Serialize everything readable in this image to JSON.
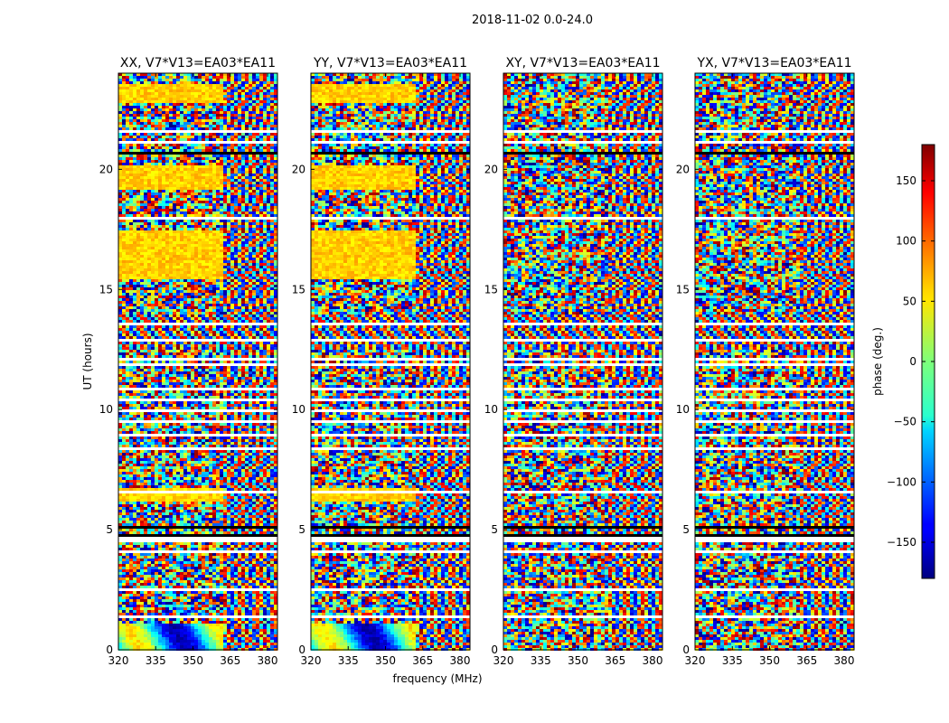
{
  "chart_data": {
    "type": "heatmap",
    "suptitle": "2018-11-02 0.0-24.0",
    "xlabel": "frequency (MHz)",
    "ylabel": "UT (hours)",
    "xlim": [
      320,
      384
    ],
    "ylim": [
      0,
      24
    ],
    "x_ticks": [
      "320",
      "335",
      "350",
      "365",
      "380"
    ],
    "x_tick_values": [
      320,
      335,
      350,
      365,
      380
    ],
    "y_ticks": [
      "0",
      "5",
      "10",
      "15",
      "20"
    ],
    "y_tick_values": [
      0,
      5,
      10,
      15,
      20
    ],
    "panels": [
      {
        "name": "XX",
        "title": "XX, V7*V13=EA03*EA11"
      },
      {
        "name": "YY",
        "title": "YY, V7*V13=EA03*EA11"
      },
      {
        "name": "XY",
        "title": "XY, V7*V13=EA03*EA11"
      },
      {
        "name": "YX",
        "title": "YX, V7*V13=EA03*EA11"
      }
    ],
    "colorbar": {
      "label": "phase (deg.)",
      "range": [
        -180,
        180
      ],
      "tick_values": [
        -150,
        -100,
        -50,
        0,
        50,
        100,
        150
      ],
      "tick_labels": [
        "−150",
        "−100",
        "−50",
        "0",
        "50",
        "100",
        "150"
      ],
      "colormap": "jet"
    }
  },
  "colors": {
    "background": "#ffffff",
    "flagged": "#ffffff",
    "axis": "#000000"
  }
}
